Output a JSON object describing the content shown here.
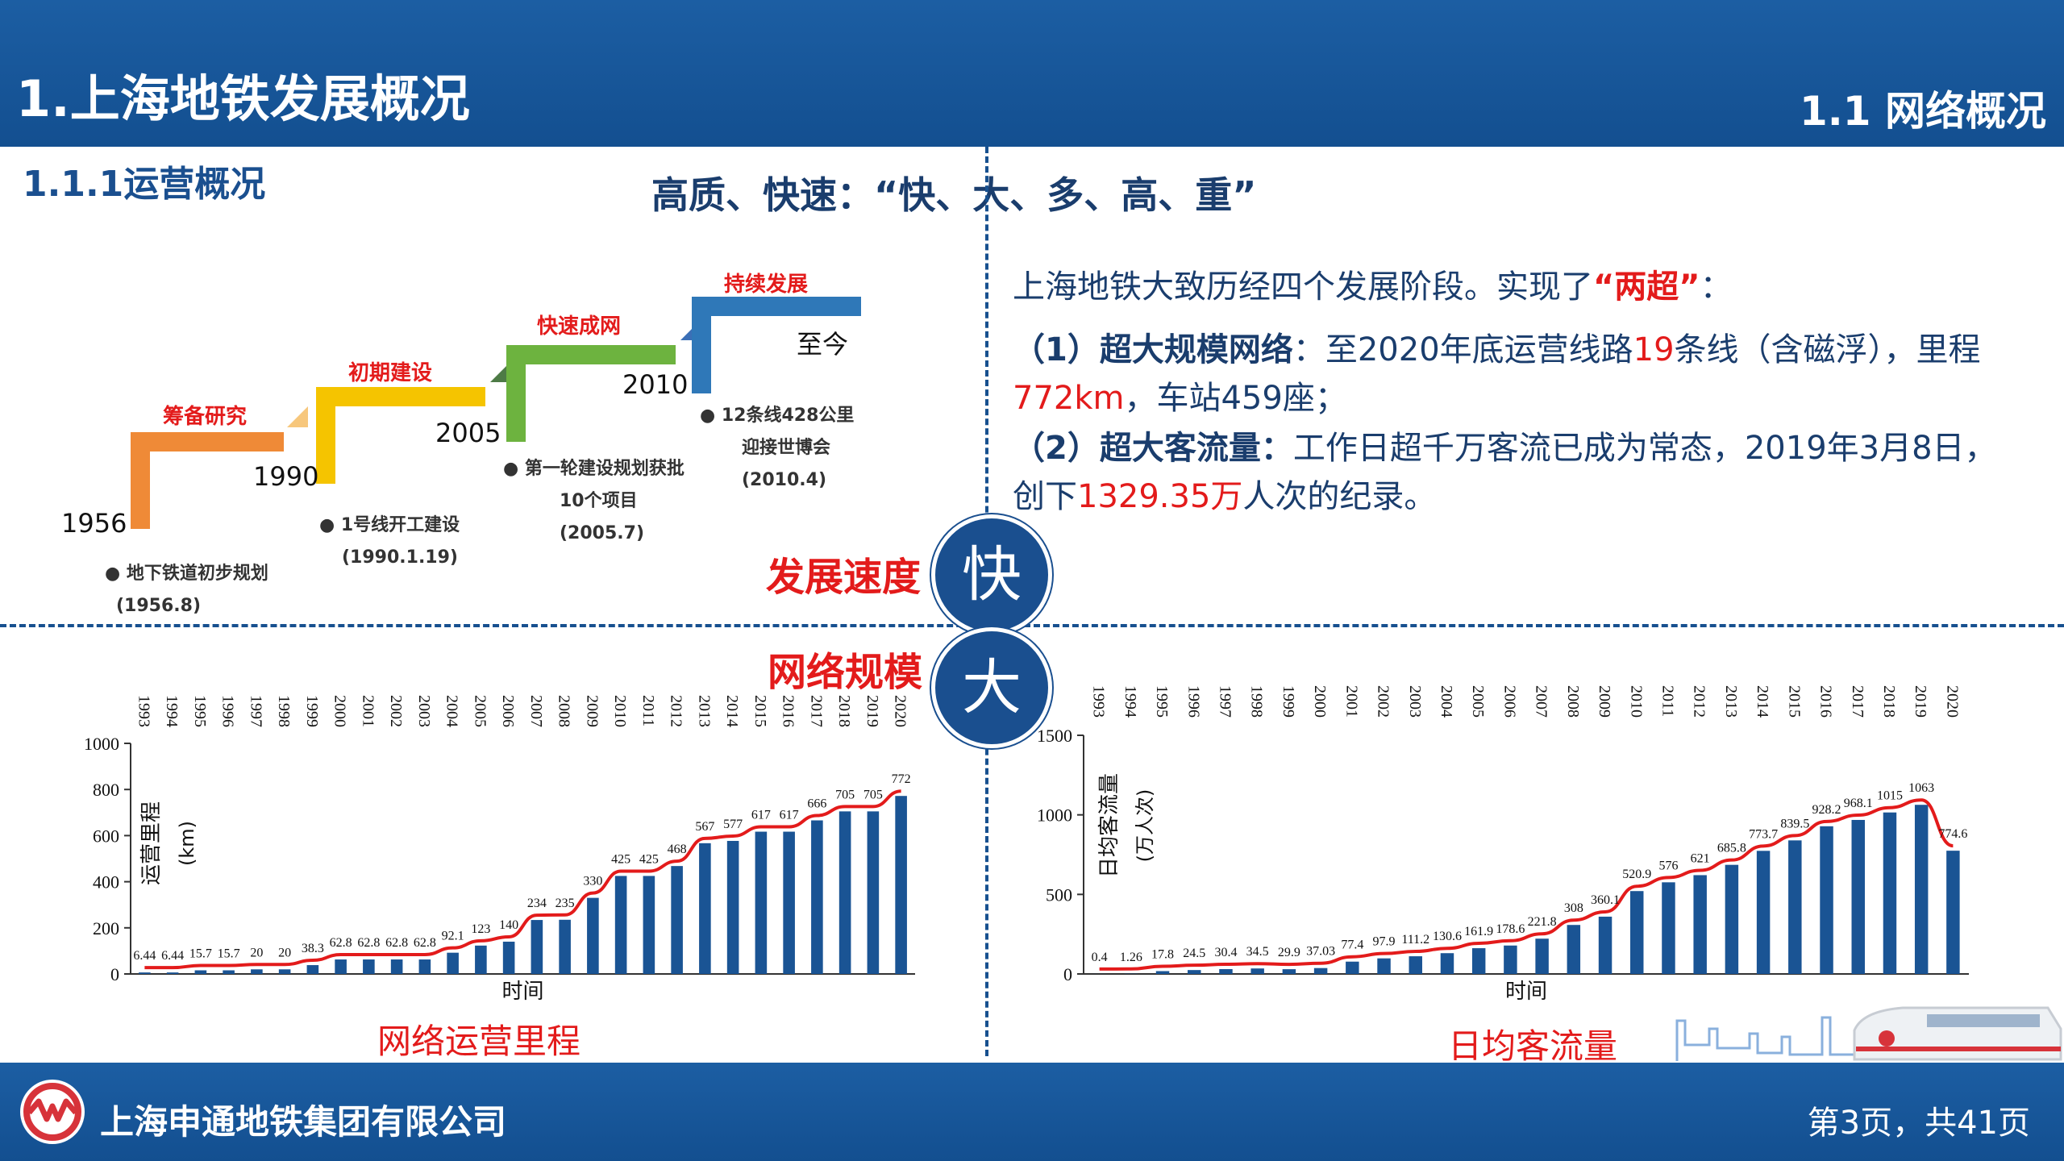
{
  "header": {
    "title": "1.上海地铁发展概况",
    "subtitle": "1.1 网络概况"
  },
  "section": {
    "title": "1.1.1运营概况",
    "slogan": "高质、快速：“快、大、多、高、重”"
  },
  "timeline": {
    "stages": [
      {
        "name": "筹备研究",
        "year": "1956",
        "color": "#ef8a37",
        "note_lines": [
          "地下铁道初步规划",
          "(1956.8)"
        ]
      },
      {
        "name": "初期建设",
        "year": "1990",
        "color": "#f5c400",
        "note_lines": [
          "1号线开工建设",
          "(1990.1.19)"
        ]
      },
      {
        "name": "快速成网",
        "year": "2005",
        "color": "#6db33f",
        "note_lines": [
          "第一轮建设规划获批",
          "10个项目",
          "(2005.7)"
        ]
      },
      {
        "name": "持续发展",
        "year": "2010",
        "color": "#2f78b8",
        "note_lines": [
          "12条线428公里",
          "迎接世博会",
          "(2010.4)"
        ]
      }
    ],
    "end_label": "至今"
  },
  "description": {
    "intro_pre": "上海地铁大致历经四个发展阶段。实现了",
    "intro_highlight": "“两超”",
    "intro_post": "：",
    "p1_label": "（1）超大规模网络",
    "p1_a": "：至2020年底运营线路",
    "p1_num": "19",
    "p1_b": "条线（含磁浮），里程",
    "p1_km": "772km",
    "p1_c": "，车站459座；",
    "p2_label": "（2）超大客流量：",
    "p2_a": "工作日超千万客流已成为常态，2019年3月8日，创下",
    "p2_num": "1329.35万",
    "p2_b": "人次的纪录。"
  },
  "speed": {
    "label": "发展速度",
    "char": "快"
  },
  "scale": {
    "label": "网络规模",
    "char": "大"
  },
  "chart_data": [
    {
      "type": "bar",
      "title": "网络运营里程",
      "xlabel": "时间",
      "ylabel": "运营里程",
      "yunit": "(km)",
      "ylim": [
        0,
        1000
      ],
      "yticks": [
        0,
        200,
        400,
        600,
        800,
        1000
      ],
      "categories": [
        "1993",
        "1994",
        "1995",
        "1996",
        "1997",
        "1998",
        "1999",
        "2000",
        "2001",
        "2002",
        "2003",
        "2004",
        "2005",
        "2006",
        "2007",
        "2008",
        "2009",
        "2010",
        "2011",
        "2012",
        "2013",
        "2014",
        "2015",
        "2016",
        "2017",
        "2018",
        "2019",
        "2020"
      ],
      "values": [
        6.44,
        6.44,
        15.7,
        15.7,
        20,
        20,
        38.3,
        62.8,
        62.8,
        62.8,
        62.8,
        92.1,
        123,
        140,
        234,
        235,
        330,
        425,
        425,
        468,
        567,
        577,
        617,
        617,
        666,
        705,
        705,
        772
      ],
      "labels": [
        "6.44",
        "6.44",
        "15.7",
        "15.7",
        "20",
        "20",
        "38.3",
        "62.8",
        "62.8",
        "62.8",
        "62.8",
        "92.1",
        "123",
        "140",
        "234",
        "235",
        "330",
        "425",
        "425",
        "468",
        "567",
        "577",
        "617",
        "617",
        "666",
        "705",
        "705",
        "772"
      ],
      "bar_color": "#1a5494",
      "line_color": "#e31b1b"
    },
    {
      "type": "bar",
      "title": "日均客流量",
      "xlabel": "时间",
      "ylabel": "日均客流量",
      "yunit": "(万人次)",
      "ylim": [
        0,
        1500
      ],
      "yticks": [
        0,
        500,
        1000,
        1500
      ],
      "categories": [
        "1993",
        "1994",
        "1995",
        "1996",
        "1997",
        "1998",
        "1999",
        "2000",
        "2001",
        "2002",
        "2003",
        "2004",
        "2005",
        "2006",
        "2007",
        "2008",
        "2009",
        "2010",
        "2011",
        "2012",
        "2013",
        "2014",
        "2015",
        "2016",
        "2017",
        "2018",
        "2019",
        "2020"
      ],
      "values": [
        0.4,
        1.26,
        17.8,
        24.5,
        30.4,
        34.5,
        29.9,
        37.03,
        77.4,
        97.9,
        111.2,
        130.6,
        161.9,
        178.6,
        221.8,
        308,
        360.1,
        520.9,
        576,
        621,
        685.8,
        773.7,
        839.5,
        928.2,
        968.1,
        1015,
        1063,
        774.6
      ],
      "labels": [
        "0.4",
        "1.26",
        "17.8",
        "24.5",
        "30.4",
        "34.5",
        "29.9",
        "37.03",
        "77.4",
        "97.9",
        "111.2",
        "130.6",
        "161.9",
        "178.6",
        "221.8",
        "308",
        "360.1",
        "520.9",
        "576",
        "621",
        "685.8",
        "773.7",
        "839.5",
        "928.2",
        "968.1",
        "1015",
        "1063",
        "774.6"
      ],
      "bar_color": "#1a5494",
      "line_color": "#e31b1b"
    }
  ],
  "footer": {
    "company": "上海申通地铁集团有限公司",
    "page": "第3页，共41页"
  }
}
